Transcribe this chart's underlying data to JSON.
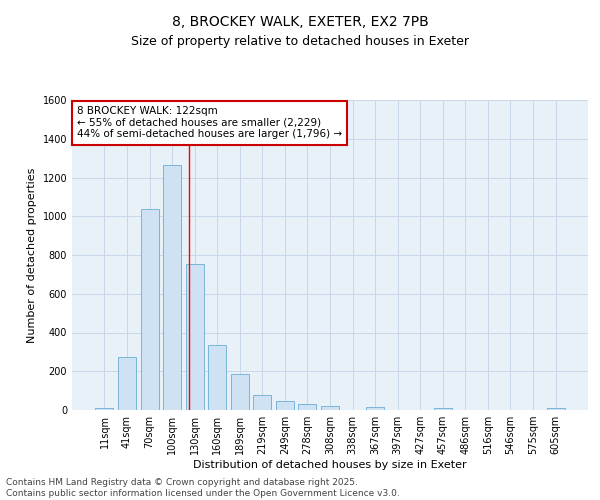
{
  "title_line1": "8, BROCKEY WALK, EXETER, EX2 7PB",
  "title_line2": "Size of property relative to detached houses in Exeter",
  "xlabel": "Distribution of detached houses by size in Exeter",
  "ylabel": "Number of detached properties",
  "bar_categories": [
    "11sqm",
    "41sqm",
    "70sqm",
    "100sqm",
    "130sqm",
    "160sqm",
    "189sqm",
    "219sqm",
    "249sqm",
    "278sqm",
    "308sqm",
    "338sqm",
    "367sqm",
    "397sqm",
    "427sqm",
    "457sqm",
    "486sqm",
    "516sqm",
    "546sqm",
    "575sqm",
    "605sqm"
  ],
  "bar_values": [
    10,
    275,
    1040,
    1265,
    755,
    335,
    185,
    80,
    45,
    30,
    20,
    0,
    15,
    0,
    0,
    12,
    0,
    0,
    0,
    0,
    12
  ],
  "bar_color_fill": "#cfe2f3",
  "bar_color_edge": "#6aaed6",
  "bar_width": 0.8,
  "annotation_line1": "8 BROCKEY WALK: 122sqm",
  "annotation_line2": "← 55% of detached houses are smaller (2,229)",
  "annotation_line3": "44% of semi-detached houses are larger (1,796) →",
  "ylim": [
    0,
    1600
  ],
  "yticks": [
    0,
    200,
    400,
    600,
    800,
    1000,
    1200,
    1400,
    1600
  ],
  "grid_color": "#c8d8e8",
  "background_color": "#e8f0f8",
  "footer_line1": "Contains HM Land Registry data © Crown copyright and database right 2025.",
  "footer_line2": "Contains public sector information licensed under the Open Government Licence v3.0.",
  "title_fontsize": 10,
  "subtitle_fontsize": 9,
  "axis_label_fontsize": 8,
  "tick_fontsize": 7,
  "annotation_fontsize": 7.5,
  "footer_fontsize": 6.5
}
